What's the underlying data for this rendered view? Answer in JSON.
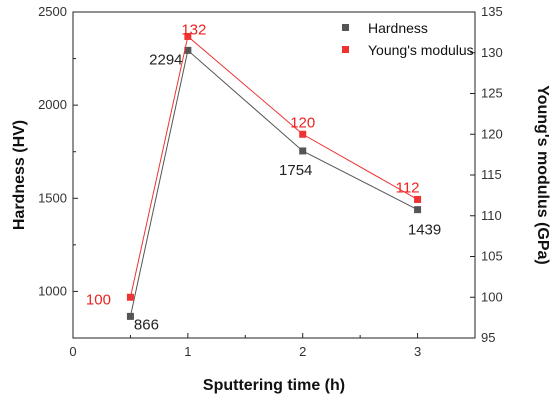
{
  "chart_data": {
    "type": "line",
    "xlabel": "Sputtering time (h)",
    "ylabel_left": "Hardness (HV)",
    "ylabel_right": "Young's modulus (GPa)",
    "xlim": [
      0,
      3.5
    ],
    "ylim_left": [
      750,
      2500
    ],
    "ylim_right": [
      95,
      135
    ],
    "x_ticks": [
      0,
      1,
      2,
      3
    ],
    "y_ticks_left": [
      1000,
      1500,
      2000,
      2500
    ],
    "y_ticks_right": [
      95,
      100,
      105,
      110,
      115,
      120,
      125,
      130,
      135
    ],
    "grid": false,
    "legend_position": "top-right",
    "series": [
      {
        "name": "Hardness",
        "axis": "left",
        "color": "#555555",
        "marker": "square",
        "x": [
          0.5,
          1,
          2,
          3
        ],
        "values": [
          866,
          2294,
          1754,
          1439
        ],
        "labels": [
          "866",
          "2294",
          "1754",
          "1439"
        ]
      },
      {
        "name": "Young's modulus",
        "axis": "right",
        "color": "#ee3333",
        "marker": "square",
        "x": [
          0.5,
          1,
          2,
          3
        ],
        "values": [
          100,
          132,
          120,
          112
        ],
        "labels": [
          "100",
          "132",
          "120",
          "112"
        ]
      }
    ]
  }
}
